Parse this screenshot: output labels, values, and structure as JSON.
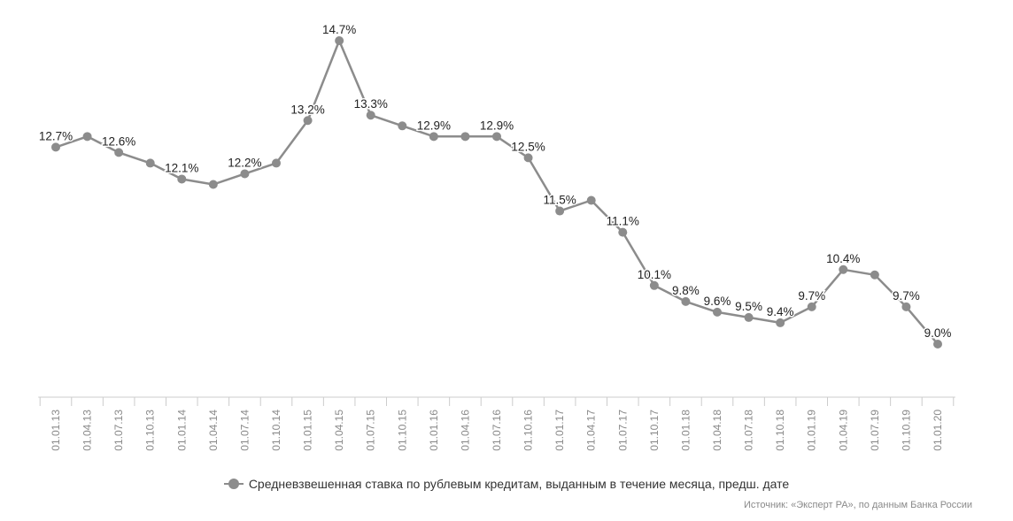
{
  "chart_data": {
    "type": "line",
    "x": [
      "01.01.13",
      "01.04.13",
      "01.07.13",
      "01.10.13",
      "01.01.14",
      "01.04.14",
      "01.07.14",
      "01.10.14",
      "01.01.15",
      "01.04.15",
      "01.07.15",
      "01.10.15",
      "01.01.16",
      "01.04.16",
      "01.07.16",
      "01.10.16",
      "01.01.17",
      "01.04.17",
      "01.07.17",
      "01.10.17",
      "01.01.18",
      "01.04.18",
      "01.07.18",
      "01.10.18",
      "01.01.19",
      "01.04.19",
      "01.07.19",
      "01.10.19",
      "01.01.20"
    ],
    "series": [
      {
        "name": "Средневзвешенная ставка по рублевым кредитам, выданным в течение месяца, предш. дате",
        "color": "#8c8c8c",
        "values": [
          12.7,
          12.9,
          12.6,
          12.4,
          12.1,
          12.0,
          12.2,
          12.4,
          13.2,
          14.7,
          13.3,
          13.1,
          12.9,
          12.9,
          12.9,
          12.5,
          11.5,
          11.7,
          11.1,
          10.1,
          9.8,
          9.6,
          9.5,
          9.4,
          9.7,
          10.4,
          10.3,
          9.7,
          9.0
        ],
        "labels": [
          "12.7%",
          "",
          "12.6%",
          "",
          "12.1%",
          "",
          "12.2%",
          "",
          "13.2%",
          "14.7%",
          "13.3%",
          "",
          "12.9%",
          "",
          "12.9%",
          "12.5%",
          "11.5%",
          "",
          "11.1%",
          "10.1%",
          "9.8%",
          "9.6%",
          "9.5%",
          "9.4%",
          "9.7%",
          "10.4%",
          "",
          "9.7%",
          "9.0%"
        ]
      }
    ],
    "ylim": [
      8.0,
      15.0
    ],
    "grid": false,
    "legend_position": "bottom"
  },
  "legend": {
    "label": "Средневзвешенная ставка по рублевым кредитам, выданным в течение месяца, предш. дате"
  },
  "source": "Источник: «Эксперт РА», по данным Банка России"
}
